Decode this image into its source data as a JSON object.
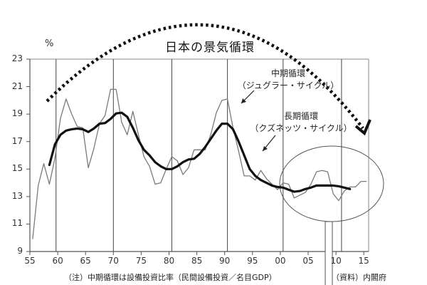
{
  "chart_data": {
    "type": "line",
    "title": "日本の景気循環",
    "ylabel": "%",
    "xlabel": "",
    "ylim": [
      9,
      23
    ],
    "yticks": [
      9,
      11,
      13,
      15,
      17,
      19,
      21,
      23
    ],
    "xlim": [
      1955,
      2015
    ],
    "xtick_labels": [
      "55",
      "60",
      "65",
      "70",
      "75",
      "80",
      "85",
      "90",
      "95",
      "00",
      "05",
      "10",
      "15"
    ],
    "grid": false,
    "legend": "none (inline annotations with arrows)",
    "series": [
      {
        "name": "中期循環（ジュグラー・サイクル）",
        "style": "thin gray line",
        "x": [
          1955.5,
          1956.5,
          1957.5,
          1958.5,
          1959.5,
          1960.5,
          1961.5,
          1962.5,
          1963.5,
          1964.5,
          1965.5,
          1966.5,
          1967.5,
          1968.5,
          1969.5,
          1970.5,
          1971.5,
          1972.5,
          1973.5,
          1974.5,
          1975.5,
          1976.5,
          1977.5,
          1978.5,
          1979.5,
          1980.5,
          1981.5,
          1982.5,
          1983.5,
          1984.5,
          1985.5,
          1986.5,
          1987.5,
          1988.5,
          1989.5,
          1990.5,
          1991.5,
          1992.5,
          1993.5,
          1994.5,
          1995.5,
          1996.5,
          1997.5,
          1998.5,
          1999.5,
          2000.5,
          2001.5,
          2002.5,
          2003.5,
          2004.5,
          2005.5,
          2006.5,
          2007.5,
          2008.5,
          2009.5,
          2010.5,
          2011.5,
          2012.5,
          2013.5,
          2014.5,
          2015.5
        ],
        "values": [
          9.9,
          13.8,
          15.4,
          13.9,
          15.8,
          18.7,
          20.1,
          19.0,
          18.1,
          18.0,
          15.1,
          16.5,
          18.3,
          18.9,
          20.8,
          20.8,
          18.4,
          17.5,
          19.2,
          17.5,
          15.9,
          15.2,
          13.9,
          14.0,
          15.0,
          15.9,
          15.6,
          14.6,
          15.1,
          16.4,
          16.4,
          16.4,
          17.5,
          19.1,
          20.0,
          20.1,
          18.0,
          16.3,
          14.5,
          14.5,
          14.2,
          14.9,
          14.3,
          13.9,
          13.5,
          14.0,
          13.9,
          12.9,
          13.1,
          13.3,
          13.9,
          14.8,
          14.9,
          14.8,
          13.2,
          12.7,
          13.4,
          13.7,
          13.7,
          14.1,
          14.1
        ]
      },
      {
        "name": "長期循環（クズネッツ・サイクル）",
        "style": "thick black line",
        "x": [
          1958.5,
          1959.5,
          1960.5,
          1961.5,
          1962.5,
          1963.5,
          1964.5,
          1965.5,
          1966.5,
          1967.5,
          1968.5,
          1969.5,
          1970.5,
          1971.5,
          1972.5,
          1973.5,
          1974.5,
          1975.5,
          1976.5,
          1977.5,
          1978.5,
          1979.5,
          1980.5,
          1981.5,
          1982.5,
          1983.5,
          1984.5,
          1985.5,
          1986.5,
          1987.5,
          1988.5,
          1989.5,
          1990.5,
          1991.5,
          1992.5,
          1993.5,
          1994.5,
          1995.5,
          1996.5,
          1997.5,
          1998.5,
          1999.5,
          2000.5,
          2001.5,
          2002.5,
          2003.5,
          2004.5,
          2005.5,
          2006.5,
          2007.5,
          2008.5,
          2009.5,
          2010.5,
          2011.5,
          2012.5
        ],
        "values": [
          15.3,
          16.8,
          17.5,
          17.8,
          17.9,
          17.95,
          17.9,
          17.7,
          17.95,
          18.3,
          18.35,
          18.65,
          19.05,
          19.1,
          18.8,
          18.0,
          17.1,
          16.4,
          16.0,
          15.5,
          15.2,
          15.0,
          15.0,
          15.2,
          15.5,
          15.7,
          15.75,
          16.1,
          16.6,
          17.2,
          17.8,
          18.3,
          18.3,
          17.9,
          17.0,
          16.0,
          15.0,
          14.5,
          14.2,
          14.0,
          13.8,
          13.7,
          13.65,
          13.5,
          13.35,
          13.4,
          13.55,
          13.65,
          13.8,
          13.8,
          13.8,
          13.8,
          13.75,
          13.65,
          13.55
        ]
      }
    ],
    "vertical_lines_at": [
      1959.7,
      1970.0,
      1980.5,
      1990.5,
      2000.5,
      2011.0
    ],
    "annotations": [
      {
        "text": "中期循環",
        "subtext": "（ジュグラー・サイクル）",
        "arrow_to": [
          1991.5,
          20.3
        ]
      },
      {
        "text": "長期循環",
        "subtext": "（クズネッツ・サイクル）",
        "arrow_to": [
          1991.8,
          15.9
        ]
      },
      {
        "text": "dotted arc arrow",
        "from": [
          1957.8,
          19.9
        ],
        "to": [
          2014.3,
          16.5
        ]
      },
      {
        "text": "ellipse highlighting 2000–2015",
        "center": [
          2008.5,
          14.0
        ]
      }
    ],
    "notes": {
      "left": "（注）中期循環は設備投資比率（民間設備投資／名目GDP）",
      "right": "（資料）内閣府"
    }
  },
  "title": "日本の景気循環",
  "unit_label": "%",
  "y_tick_labels": [
    "23",
    "21",
    "19",
    "17",
    "15",
    "13",
    "11",
    "9"
  ],
  "x_tick_labels": [
    "55",
    "60",
    "65",
    "70",
    "75",
    "80",
    "85",
    "90",
    "95",
    "00",
    "05",
    "10",
    "15"
  ],
  "annotation_mid": {
    "line1": "中期循環",
    "line2": "（ジュグラー・サイクル）"
  },
  "annotation_long": {
    "line1": "長期循環",
    "line2": "（クズネッツ・サイクル）"
  },
  "note_left": "（注）中期循環は設備投資比率（民間設備投資／名目GDP）",
  "note_right": "（資料）内閣府",
  "colors": {
    "thin_series": "#7a7a7a",
    "thick_series": "#111111",
    "axis": "#555555",
    "vline": "#333333",
    "arc": "#111111"
  }
}
